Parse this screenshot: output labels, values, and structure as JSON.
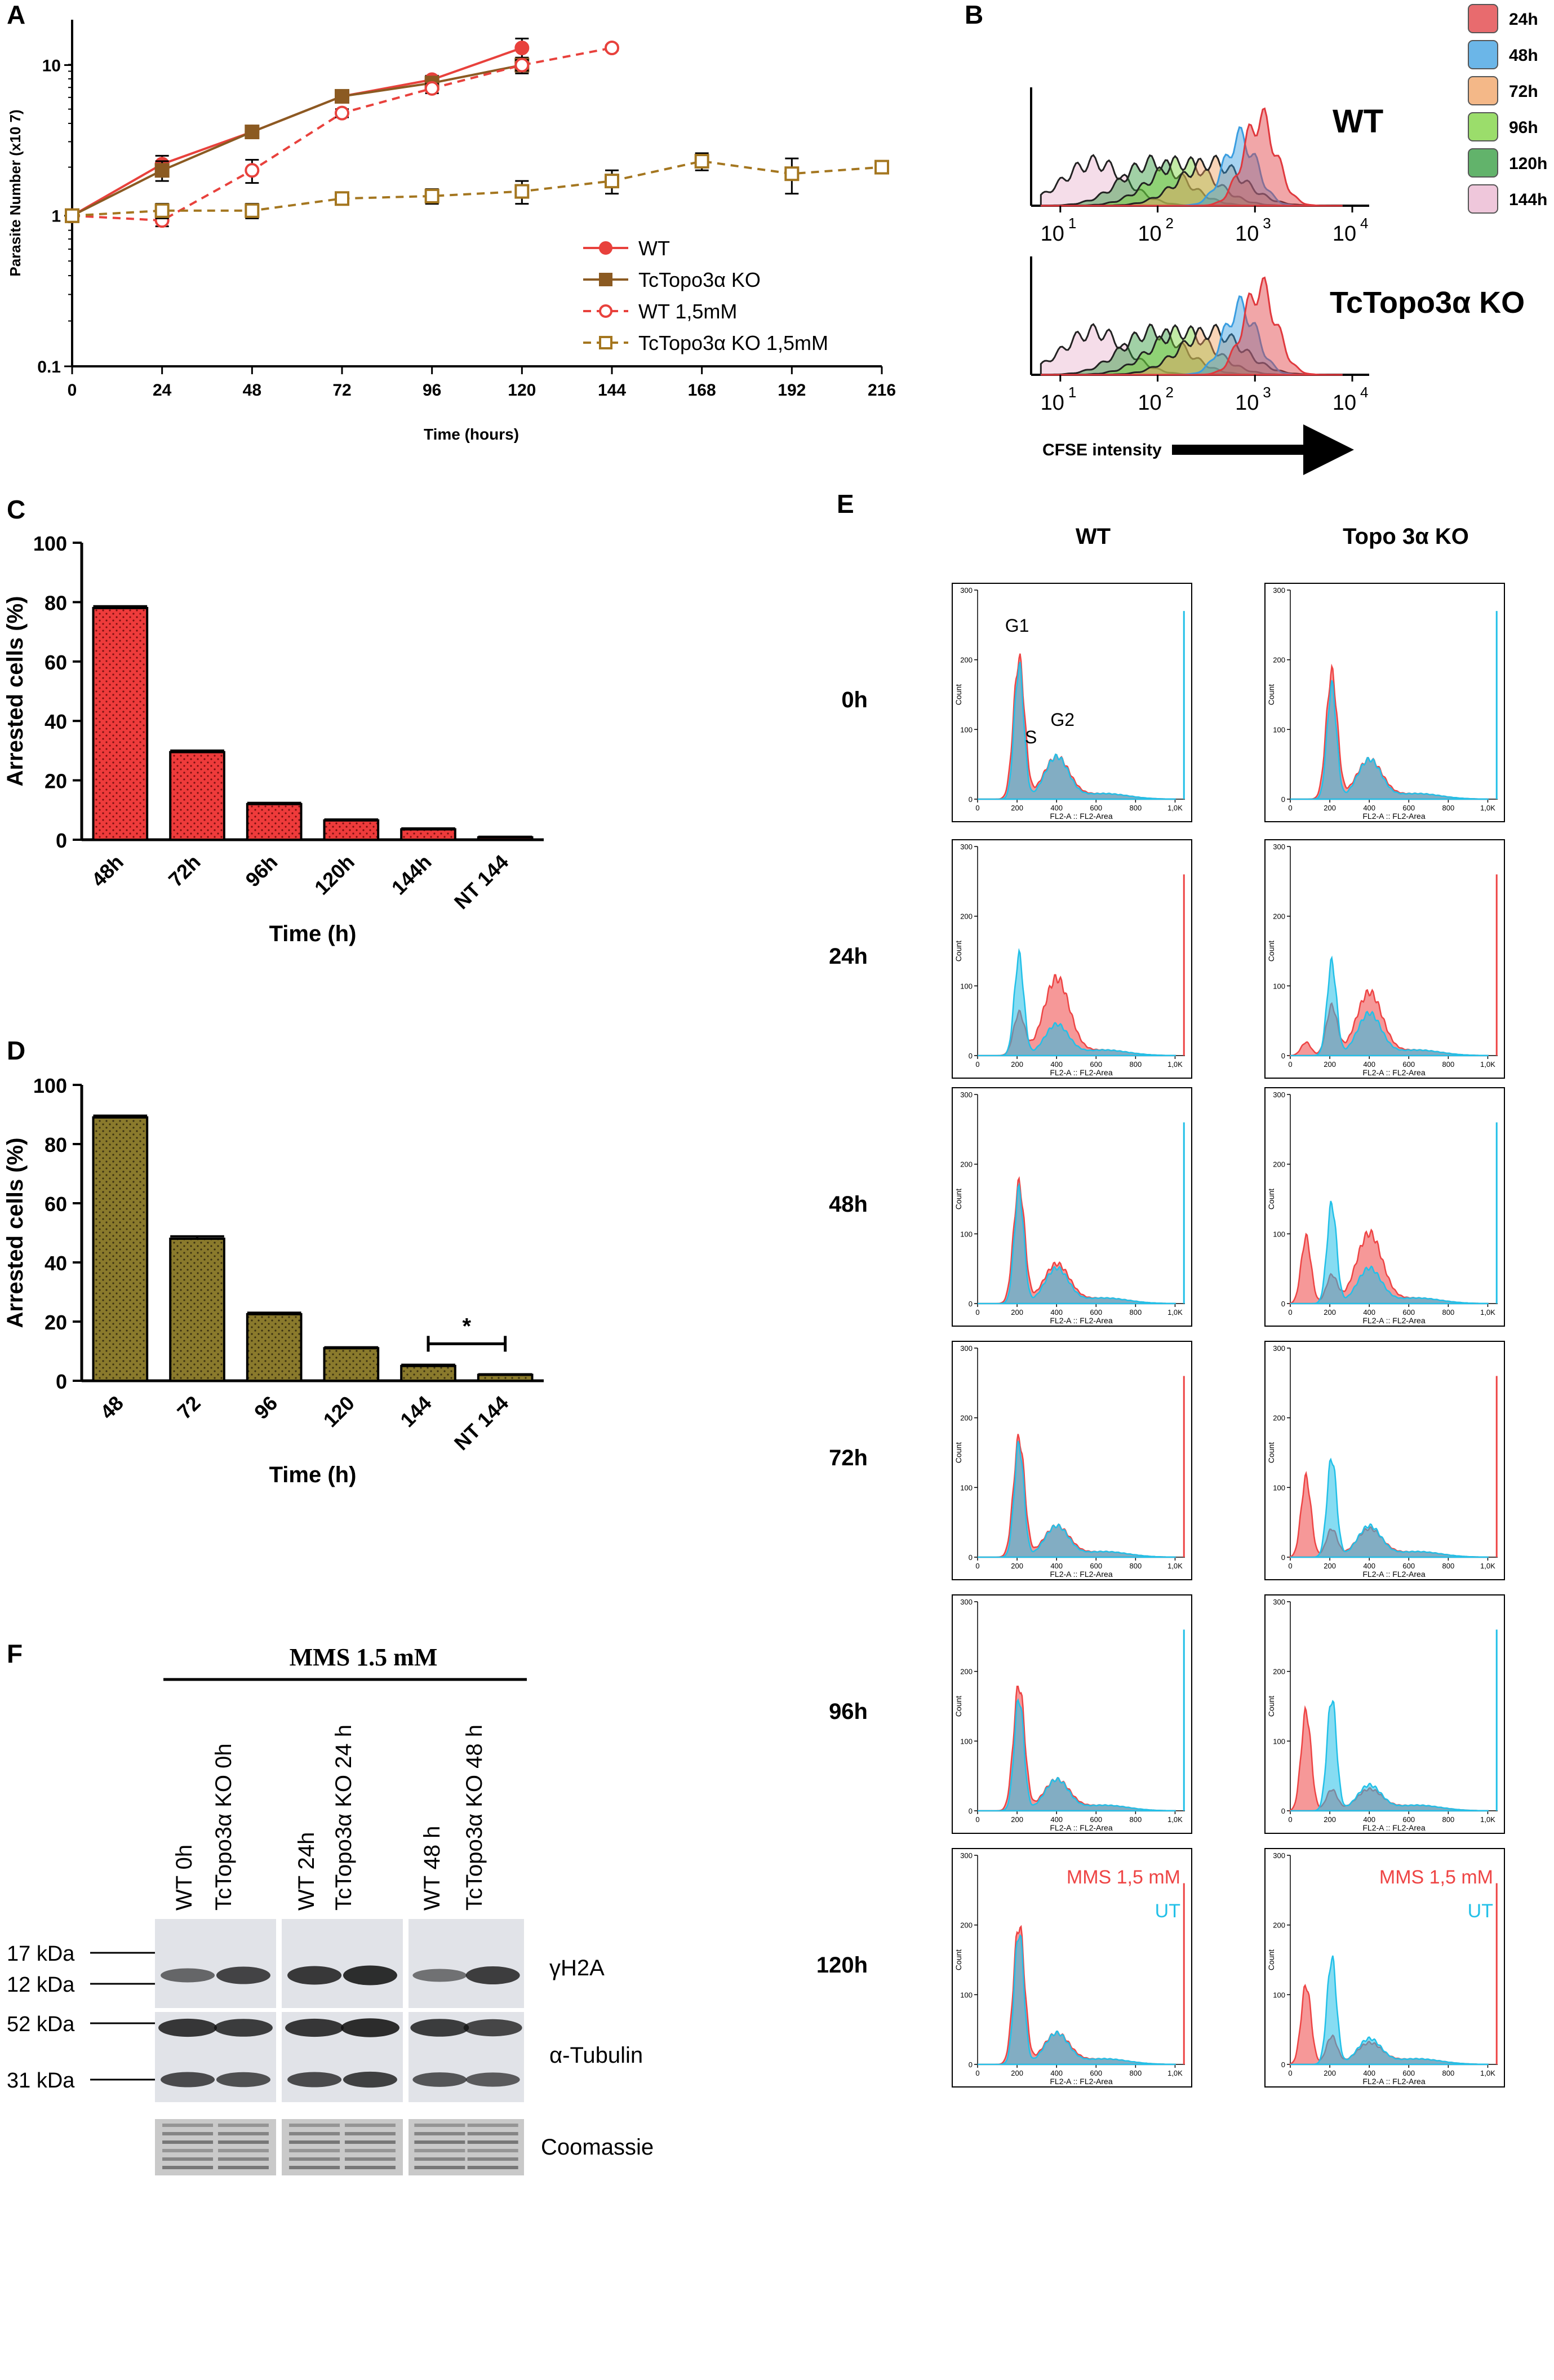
{
  "figure": {
    "panel_letters": [
      "A",
      "B",
      "C",
      "D",
      "E",
      "F"
    ],
    "colors": {
      "wt": "#e8413c",
      "ko": "#8b5a22",
      "ko_mms": "#a4761f",
      "bar_c": "#ee3b3b",
      "bar_d": "#8a7a2c",
      "hist_red": "#ee4444",
      "hist_blue": "#22c0e8",
      "overlay": "#6f8ea8"
    }
  },
  "chart_data": [
    {
      "id": "A",
      "type": "line",
      "ylabel": "Parasite Number (x10 7)",
      "xlabel": "Time (hours)",
      "yscale": "log",
      "ylim": [
        0.1,
        20
      ],
      "xlim": [
        0,
        216
      ],
      "xticks": [
        "0",
        "24",
        "48",
        "72",
        "96",
        "120",
        "144",
        "168",
        "192",
        "216"
      ],
      "yticks": [
        "0.1",
        "1",
        "10"
      ],
      "legend": [
        "WT",
        "TcTopo3α KO",
        "WT 1,5mM",
        "TcTopo3α KO 1,5mM"
      ],
      "series": [
        {
          "name": "WT",
          "x": [
            0,
            24,
            48,
            72,
            96,
            120
          ],
          "y": [
            1,
            2.2,
            3.6,
            6.2,
            8.0,
            13.0
          ],
          "err": [
            0,
            0.3,
            0.3,
            0.3,
            0.5,
            2.0
          ]
        },
        {
          "name": "TcTopo3α KO",
          "x": [
            0,
            24,
            48,
            72,
            96,
            120
          ],
          "y": [
            1,
            2.0,
            3.6,
            6.2,
            7.6,
            10.0
          ],
          "err": [
            0,
            0.3,
            0.3,
            0.3,
            0.5,
            1.2
          ]
        },
        {
          "name": "WT 1,5mM",
          "x": [
            0,
            24,
            48,
            72,
            96,
            120,
            144
          ],
          "y": [
            1,
            0.93,
            2.0,
            4.8,
            7.0,
            10.0,
            13.0
          ],
          "err": [
            0,
            0.08,
            0.35,
            0.3,
            0.5,
            0.8,
            0.5
          ]
        },
        {
          "name": "TcTopo3α KO 1,5mM",
          "x": [
            0,
            24,
            48,
            72,
            96,
            120,
            144,
            168,
            192,
            216
          ],
          "y": [
            1,
            1.08,
            1.08,
            1.3,
            1.35,
            1.45,
            1.7,
            2.3,
            1.9,
            2.1
          ],
          "err": [
            0,
            0.12,
            0.12,
            0.1,
            0.15,
            0.25,
            0.3,
            0.3,
            0.5,
            0.1
          ]
        }
      ]
    },
    {
      "id": "B",
      "type": "histogram",
      "xlabel": "CFSE intensity",
      "xscale": "log",
      "xticks": [
        "10",
        "10",
        "10",
        "10"
      ],
      "xtick_exps": [
        "1",
        "2",
        "3",
        "4"
      ],
      "groups": [
        "WT",
        "TcTopo3α KO"
      ],
      "legend": [
        "24h",
        "48h",
        "72h",
        "96h",
        "120h",
        "144h"
      ],
      "series_peaks_log10": [
        3.05,
        2.85,
        2.55,
        2.25,
        1.95,
        1.35
      ]
    },
    {
      "id": "C",
      "type": "bar",
      "ylabel": "Arrested cells (%)",
      "xlabel": "Time (h)",
      "categories": [
        "48h",
        "72h",
        "96h",
        "120h",
        "144h",
        "NT 144"
      ],
      "values": [
        78,
        29.5,
        12,
        6.5,
        3.5,
        0.8
      ],
      "err": [
        0.6,
        0.5,
        0.4,
        0.3,
        0.3,
        0.2
      ],
      "ylim": [
        0,
        100
      ],
      "yticks": [
        "0",
        "20",
        "40",
        "60",
        "80",
        "100"
      ]
    },
    {
      "id": "D",
      "type": "bar",
      "ylabel": "Arrested cells (%)",
      "xlabel": "Time (h)",
      "categories": [
        "48",
        "72",
        "96",
        "120",
        "144",
        "NT 144"
      ],
      "values": [
        89,
        48,
        22.5,
        11,
        5,
        2
      ],
      "err": [
        0.6,
        0.8,
        0.5,
        0.3,
        0.4,
        0.2
      ],
      "ylim": [
        0,
        100
      ],
      "yticks": [
        "0",
        "20",
        "40",
        "60",
        "80",
        "100"
      ],
      "significance": "*"
    },
    {
      "id": "E",
      "type": "histogram",
      "columns": [
        "WT",
        "Topo 3α KO"
      ],
      "rows": [
        "0h",
        "24h",
        "48h",
        "72h",
        "96h",
        "120h"
      ],
      "xlabel": "FL2-A :: FL2-Area",
      "ylabel": "Count",
      "xticks": [
        "0",
        "200",
        "400",
        "600",
        "800",
        "1,0K"
      ],
      "yticks": [
        "0",
        "100",
        "200",
        "300"
      ],
      "peak_labels": [
        "G1",
        "S",
        "G2"
      ],
      "legend": [
        "MMS 1,5 mM",
        "UT"
      ]
    }
  ],
  "western": {
    "title": "MMS 1.5 mM",
    "lanes": [
      "WT 0h",
      "TcTopo3α KO 0h",
      "WT 24h",
      "TcTopo3α KO 24 h",
      "WT 48 h",
      "TcTopo3α KO 48 h"
    ],
    "markers": [
      "17 kDa",
      "12 kDa",
      "52 kDa",
      "31 kDa"
    ],
    "bands": [
      "γH2A",
      "α-Tubulin",
      "Coomassie"
    ],
    "intensities": {
      "gH2A": [
        0.45,
        0.75,
        0.85,
        0.95,
        0.35,
        0.8
      ],
      "tubulin_top": [
        0.85,
        0.8,
        0.85,
        0.95,
        0.8,
        0.7
      ],
      "tubulin_bottom": [
        0.75,
        0.7,
        0.75,
        0.85,
        0.65,
        0.6
      ]
    }
  }
}
